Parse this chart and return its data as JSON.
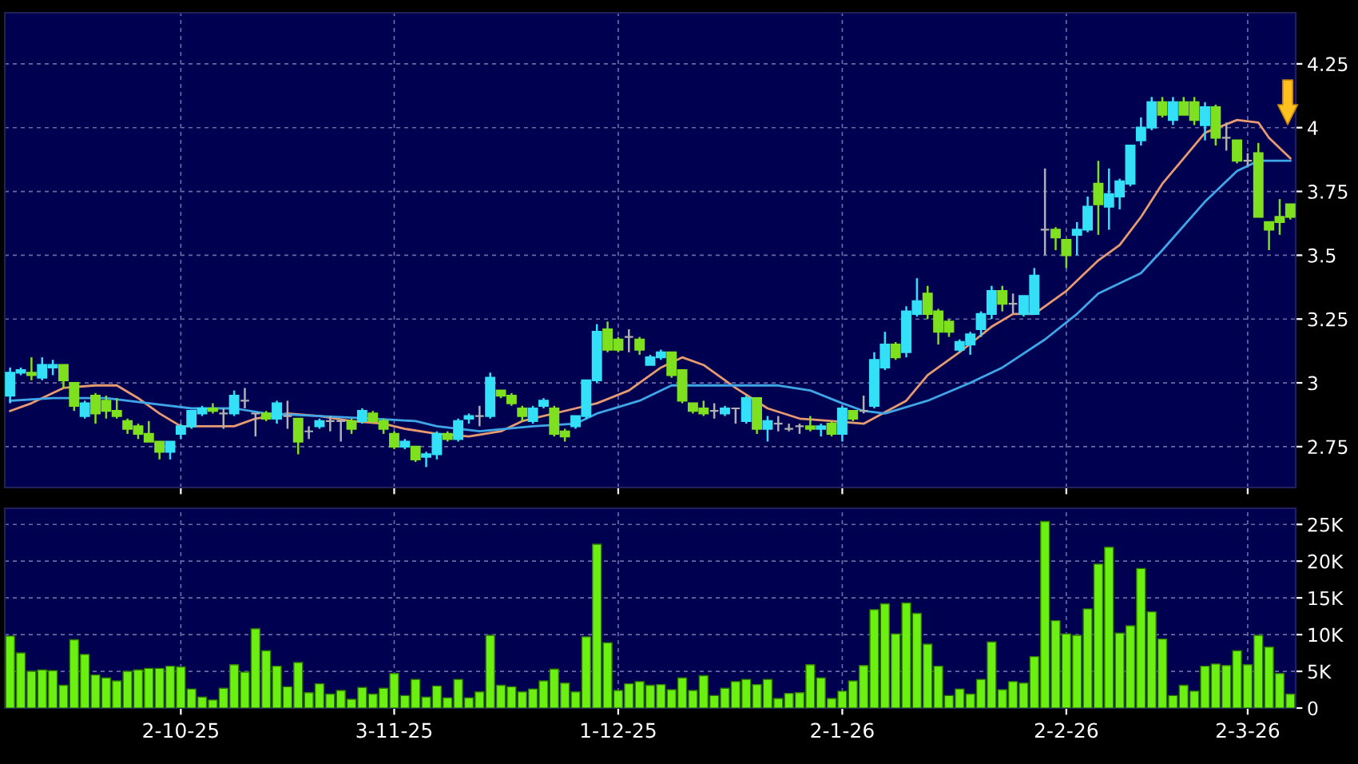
{
  "chart_data": [
    {
      "type": "candlestick",
      "categories": [
        null,
        null,
        null,
        null,
        null,
        null,
        null,
        null,
        null,
        null,
        null,
        null,
        null,
        null,
        null,
        null,
        null,
        null,
        null,
        null,
        null,
        null,
        null,
        null,
        null,
        null,
        null,
        null,
        null,
        null,
        null,
        null,
        null,
        null,
        null,
        null,
        null,
        null,
        null,
        null,
        null,
        null,
        null,
        null,
        null,
        null,
        null,
        null,
        null,
        null,
        null,
        null,
        null,
        null,
        null,
        null,
        null,
        null,
        null,
        null,
        null,
        null,
        null,
        null,
        null,
        null,
        null,
        null,
        null,
        null,
        null,
        null,
        null,
        null,
        null,
        null,
        null,
        null,
        null,
        null,
        null,
        null,
        null,
        null,
        null,
        null,
        null,
        null,
        null,
        null,
        null,
        null,
        null,
        null,
        null,
        null,
        null,
        null,
        null,
        null,
        null,
        null,
        null,
        null,
        null,
        null,
        null,
        null,
        null,
        null,
        null,
        null,
        null,
        null,
        null,
        null,
        null,
        null,
        null,
        null,
        null
      ],
      "ohlc": [
        [
          2.95,
          3.06,
          2.92,
          3.04
        ],
        [
          3.04,
          3.06,
          3.03,
          3.05
        ],
        [
          3.04,
          3.1,
          3.01,
          3.03
        ],
        [
          3.02,
          3.1,
          3.01,
          3.07
        ],
        [
          3.06,
          3.09,
          3.03,
          3.07
        ],
        [
          3.07,
          3.07,
          2.98,
          3.01
        ],
        [
          3.0,
          3.0,
          2.89,
          2.91
        ],
        [
          2.87,
          2.93,
          2.86,
          2.92
        ],
        [
          2.95,
          2.96,
          2.84,
          2.88
        ],
        [
          2.93,
          2.95,
          2.86,
          2.89
        ],
        [
          2.89,
          2.94,
          2.86,
          2.87
        ],
        [
          2.85,
          2.86,
          2.8,
          2.82
        ],
        [
          2.83,
          2.84,
          2.78,
          2.8
        ],
        [
          2.8,
          2.85,
          2.77,
          2.77
        ],
        [
          2.77,
          2.77,
          2.7,
          2.73
        ],
        [
          2.73,
          2.77,
          2.7,
          2.77
        ],
        [
          2.8,
          2.84,
          2.78,
          2.83
        ],
        [
          2.83,
          2.89,
          2.82,
          2.89
        ],
        [
          2.88,
          2.91,
          2.87,
          2.9
        ],
        [
          2.9,
          2.92,
          2.88,
          2.89
        ],
        [
          2.88,
          2.9,
          2.82,
          2.88
        ],
        [
          2.88,
          2.97,
          2.87,
          2.95
        ],
        [
          2.93,
          2.98,
          2.9,
          2.93
        ],
        [
          2.88,
          2.88,
          2.79,
          2.88
        ],
        [
          2.88,
          2.89,
          2.85,
          2.86
        ],
        [
          2.86,
          2.93,
          2.84,
          2.92
        ],
        [
          2.87,
          2.93,
          2.82,
          2.87
        ],
        [
          2.86,
          2.86,
          2.72,
          2.77
        ],
        [
          2.81,
          2.83,
          2.78,
          2.81
        ],
        [
          2.83,
          2.86,
          2.82,
          2.85
        ],
        [
          2.85,
          2.87,
          2.81,
          2.85
        ],
        [
          2.85,
          2.86,
          2.77,
          2.85
        ],
        [
          2.85,
          2.86,
          2.8,
          2.82
        ],
        [
          2.85,
          2.9,
          2.84,
          2.89
        ],
        [
          2.88,
          2.89,
          2.84,
          2.85
        ],
        [
          2.85,
          2.86,
          2.8,
          2.82
        ],
        [
          2.8,
          2.81,
          2.74,
          2.75
        ],
        [
          2.75,
          2.78,
          2.74,
          2.77
        ],
        [
          2.75,
          2.75,
          2.69,
          2.7
        ],
        [
          2.71,
          2.73,
          2.67,
          2.72
        ],
        [
          2.72,
          2.81,
          2.7,
          2.8
        ],
        [
          2.8,
          2.81,
          2.77,
          2.78
        ],
        [
          2.78,
          2.86,
          2.77,
          2.85
        ],
        [
          2.86,
          2.88,
          2.84,
          2.87
        ],
        [
          2.87,
          2.91,
          2.83,
          2.87
        ],
        [
          2.87,
          3.04,
          2.86,
          3.02
        ],
        [
          2.97,
          2.97,
          2.94,
          2.95
        ],
        [
          2.95,
          2.96,
          2.91,
          2.92
        ],
        [
          2.9,
          2.91,
          2.85,
          2.87
        ],
        [
          2.85,
          2.91,
          2.84,
          2.9
        ],
        [
          2.91,
          2.94,
          2.9,
          2.93
        ],
        [
          2.9,
          2.91,
          2.79,
          2.8
        ],
        [
          2.81,
          2.82,
          2.77,
          2.79
        ],
        [
          2.83,
          2.87,
          2.82,
          2.87
        ],
        [
          2.87,
          3.01,
          2.86,
          3.01
        ],
        [
          3.01,
          3.23,
          3.0,
          3.2
        ],
        [
          3.21,
          3.24,
          3.12,
          3.13
        ],
        [
          3.17,
          3.18,
          3.12,
          3.13
        ],
        [
          3.18,
          3.21,
          3.12,
          3.18
        ],
        [
          3.17,
          3.18,
          3.11,
          3.13
        ],
        [
          3.07,
          3.11,
          3.07,
          3.1
        ],
        [
          3.1,
          3.13,
          3.09,
          3.12
        ],
        [
          3.12,
          3.12,
          3.02,
          3.03
        ],
        [
          3.05,
          3.05,
          2.92,
          2.93
        ],
        [
          2.92,
          2.92,
          2.88,
          2.89
        ],
        [
          2.9,
          2.93,
          2.87,
          2.88
        ],
        [
          2.89,
          2.92,
          2.86,
          2.89
        ],
        [
          2.88,
          2.91,
          2.87,
          2.9
        ],
        [
          2.9,
          2.9,
          2.84,
          2.9
        ],
        [
          2.85,
          2.95,
          2.84,
          2.94
        ],
        [
          2.94,
          2.94,
          2.8,
          2.82
        ],
        [
          2.82,
          2.87,
          2.77,
          2.85
        ],
        [
          2.84,
          2.87,
          2.81,
          2.84
        ],
        [
          2.82,
          2.84,
          2.81,
          2.82
        ],
        [
          2.83,
          2.84,
          2.8,
          2.83
        ],
        [
          2.83,
          2.87,
          2.81,
          2.82
        ],
        [
          2.82,
          2.84,
          2.79,
          2.83
        ],
        [
          2.84,
          2.85,
          2.79,
          2.8
        ],
        [
          2.8,
          2.91,
          2.77,
          2.9
        ],
        [
          2.89,
          2.89,
          2.85,
          2.86
        ],
        [
          2.89,
          2.95,
          2.88,
          2.89
        ],
        [
          2.91,
          3.12,
          2.9,
          3.09
        ],
        [
          3.06,
          3.2,
          3.05,
          3.15
        ],
        [
          3.15,
          3.16,
          3.09,
          3.1
        ],
        [
          3.12,
          3.3,
          3.1,
          3.28
        ],
        [
          3.27,
          3.41,
          3.26,
          3.32
        ],
        [
          3.35,
          3.38,
          3.25,
          3.27
        ],
        [
          3.28,
          3.29,
          3.15,
          3.2
        ],
        [
          3.24,
          3.25,
          3.18,
          3.2
        ],
        [
          3.13,
          3.17,
          3.12,
          3.16
        ],
        [
          3.15,
          3.2,
          3.11,
          3.19
        ],
        [
          3.21,
          3.28,
          3.18,
          3.27
        ],
        [
          3.27,
          3.38,
          3.25,
          3.36
        ],
        [
          3.36,
          3.38,
          3.28,
          3.31
        ],
        [
          3.31,
          3.35,
          3.27,
          3.31
        ],
        [
          3.27,
          3.34,
          3.26,
          3.34
        ],
        [
          3.27,
          3.45,
          3.27,
          3.42
        ],
        [
          3.6,
          3.84,
          3.5,
          3.6
        ],
        [
          3.6,
          3.61,
          3.52,
          3.57
        ],
        [
          3.56,
          3.56,
          3.45,
          3.5
        ],
        [
          3.58,
          3.63,
          3.5,
          3.6
        ],
        [
          3.6,
          3.73,
          3.59,
          3.69
        ],
        [
          3.78,
          3.87,
          3.58,
          3.7
        ],
        [
          3.69,
          3.84,
          3.6,
          3.74
        ],
        [
          3.73,
          3.8,
          3.68,
          3.79
        ],
        [
          3.78,
          3.93,
          3.77,
          3.93
        ],
        [
          3.95,
          4.04,
          3.93,
          4.0
        ],
        [
          4.0,
          4.12,
          3.99,
          4.1
        ],
        [
          4.1,
          4.12,
          4.04,
          4.05
        ],
        [
          4.03,
          4.12,
          4.01,
          4.1
        ],
        [
          4.1,
          4.12,
          4.05,
          4.05
        ],
        [
          4.1,
          4.12,
          4.01,
          4.03
        ],
        [
          4.01,
          4.1,
          3.95,
          4.08
        ],
        [
          4.08,
          4.09,
          3.93,
          3.96
        ],
        [
          3.96,
          4.02,
          3.91,
          3.96
        ],
        [
          3.95,
          3.95,
          3.86,
          3.87
        ],
        [
          3.87,
          3.9,
          3.85,
          3.87
        ],
        [
          3.9,
          3.94,
          3.65,
          3.65
        ],
        [
          3.63,
          3.63,
          3.52,
          3.6
        ],
        [
          3.65,
          3.72,
          3.58,
          3.63
        ],
        [
          3.7,
          3.7,
          3.64,
          3.65
        ]
      ],
      "colors": [
        "#33e0f8",
        "#33e0f8",
        "#7ee01e",
        "#33e0f8",
        "#33e0f8",
        "#7ee01e",
        "#7ee01e",
        "#33e0f8",
        "#7ee01e",
        "#7ee01e",
        "#7ee01e",
        "#7ee01e",
        "#7ee01e",
        "#7ee01e",
        "#7ee01e",
        "#33e0f8",
        "#33e0f8",
        "#33e0f8",
        "#33e0f8",
        "#7ee01e",
        "#b0b0b0",
        "#33e0f8",
        "#b0b0b0",
        "#b0b0b0",
        "#7ee01e",
        "#33e0f8",
        "#b0b0b0",
        "#7ee01e",
        "#b0b0b0",
        "#33e0f8",
        "#b0b0b0",
        "#b0b0b0",
        "#7ee01e",
        "#33e0f8",
        "#7ee01e",
        "#7ee01e",
        "#7ee01e",
        "#33e0f8",
        "#7ee01e",
        "#33e0f8",
        "#33e0f8",
        "#7ee01e",
        "#33e0f8",
        "#33e0f8",
        "#b0b0b0",
        "#33e0f8",
        "#7ee01e",
        "#7ee01e",
        "#7ee01e",
        "#33e0f8",
        "#33e0f8",
        "#7ee01e",
        "#7ee01e",
        "#33e0f8",
        "#33e0f8",
        "#33e0f8",
        "#7ee01e",
        "#7ee01e",
        "#b0b0b0",
        "#7ee01e",
        "#33e0f8",
        "#33e0f8",
        "#7ee01e",
        "#7ee01e",
        "#7ee01e",
        "#7ee01e",
        "#b0b0b0",
        "#33e0f8",
        "#b0b0b0",
        "#33e0f8",
        "#7ee01e",
        "#33e0f8",
        "#b0b0b0",
        "#b0b0b0",
        "#b0b0b0",
        "#7ee01e",
        "#33e0f8",
        "#7ee01e",
        "#33e0f8",
        "#7ee01e",
        "#b0b0b0",
        "#33e0f8",
        "#33e0f8",
        "#7ee01e",
        "#33e0f8",
        "#33e0f8",
        "#7ee01e",
        "#7ee01e",
        "#7ee01e",
        "#33e0f8",
        "#33e0f8",
        "#33e0f8",
        "#33e0f8",
        "#7ee01e",
        "#b0b0b0",
        "#33e0f8",
        "#33e0f8",
        "#b0b0b0",
        "#7ee01e",
        "#7ee01e",
        "#33e0f8",
        "#33e0f8",
        "#7ee01e",
        "#33e0f8",
        "#33e0f8",
        "#33e0f8",
        "#33e0f8",
        "#33e0f8",
        "#7ee01e",
        "#33e0f8",
        "#7ee01e",
        "#7ee01e",
        "#33e0f8",
        "#7ee01e",
        "#b0b0b0",
        "#7ee01e",
        "#b0b0b0",
        "#7ee01e",
        "#7ee01e",
        "#7ee01e",
        "#7ee01e"
      ],
      "series": [
        {
          "type": "line",
          "color": "#e89a70",
          "values": [
            2.89,
            null,
            2.92,
            null,
            null,
            2.98,
            null,
            null,
            2.99,
            null,
            2.99,
            null,
            2.94,
            null,
            2.88,
            null,
            2.83,
            null,
            null,
            2.83,
            null,
            2.83,
            null,
            2.86,
            null,
            null,
            2.88,
            null,
            null,
            2.87,
            null,
            null,
            2.85,
            null,
            null,
            2.84,
            null,
            2.82,
            null,
            null,
            2.8,
            null,
            null,
            2.79,
            null,
            null,
            2.81,
            null,
            2.85,
            null,
            null,
            null,
            null,
            2.9,
            null,
            2.92,
            null,
            null,
            2.97,
            null,
            null,
            3.06,
            null,
            3.1,
            null,
            3.07,
            null,
            null,
            2.98,
            null,
            null,
            2.9,
            null,
            null,
            2.86,
            null,
            null,
            2.85,
            null,
            null,
            2.84,
            null,
            null,
            null,
            2.93,
            null,
            3.03,
            null,
            null,
            3.12,
            null,
            null,
            3.22,
            null,
            3.27,
            null,
            3.27,
            null,
            null,
            3.36,
            null,
            null,
            3.48,
            null,
            3.54,
            null,
            3.65,
            null,
            3.78,
            null,
            3.88,
            null,
            3.98,
            null,
            null,
            4.03,
            null,
            4.02,
            3.96,
            null,
            3.88
          ]
        },
        {
          "type": "line",
          "color": "#3fa6e8",
          "values": [
            2.93,
            null,
            null,
            null,
            2.94,
            null,
            null,
            null,
            null,
            2.94,
            null,
            null,
            null,
            2.92,
            null,
            null,
            null,
            2.9,
            null,
            null,
            null,
            2.9,
            null,
            null,
            2.88,
            null,
            null,
            null,
            null,
            2.87,
            null,
            null,
            null,
            null,
            2.86,
            null,
            null,
            null,
            2.85,
            null,
            2.83,
            null,
            null,
            null,
            2.81,
            null,
            null,
            null,
            null,
            2.83,
            null,
            null,
            null,
            2.84,
            null,
            2.88,
            null,
            null,
            null,
            2.93,
            null,
            null,
            2.99,
            null,
            null,
            2.99,
            null,
            null,
            null,
            2.99,
            null,
            null,
            2.99,
            null,
            null,
            2.97,
            null,
            null,
            2.92,
            null,
            2.89,
            null,
            2.88,
            null,
            null,
            null,
            2.93,
            null,
            null,
            null,
            3.0,
            null,
            null,
            3.06,
            null,
            null,
            null,
            3.17,
            null,
            null,
            3.27,
            null,
            3.35,
            null,
            null,
            null,
            3.43,
            null,
            3.52,
            null,
            null,
            null,
            3.71,
            null,
            null,
            3.83,
            null,
            3.87,
            null,
            null,
            3.87
          ]
        }
      ],
      "ylim": [
        2.59,
        4.45
      ],
      "yticks": [
        2.75,
        3,
        3.25,
        3.5,
        3.75,
        4,
        4.25
      ],
      "grid": true,
      "tick_labels": "y",
      "line_style": "solid"
    },
    {
      "type": "bar",
      "categories": [
        null,
        null,
        null,
        null,
        null,
        null,
        null,
        null,
        null,
        null,
        null,
        null,
        null,
        null,
        null,
        null,
        "2-10-25",
        null,
        null,
        null,
        null,
        null,
        null,
        null,
        null,
        null,
        null,
        null,
        null,
        null,
        null,
        null,
        null,
        null,
        null,
        null,
        "3-11-25",
        null,
        null,
        null,
        null,
        null,
        null,
        null,
        null,
        null,
        null,
        null,
        null,
        null,
        null,
        null,
        null,
        null,
        null,
        null,
        null,
        "1-12-25",
        null,
        null,
        null,
        null,
        null,
        null,
        null,
        null,
        null,
        null,
        null,
        null,
        null,
        null,
        null,
        null,
        null,
        null,
        null,
        null,
        "2-1-26",
        null,
        null,
        null,
        null,
        null,
        null,
        null,
        null,
        null,
        null,
        null,
        null,
        null,
        null,
        null,
        null,
        null,
        null,
        null,
        null,
        "2-2-26",
        null,
        null,
        null,
        null,
        null,
        null,
        null,
        null,
        null,
        null,
        null,
        null,
        null,
        null,
        null,
        null,
        "2-3-26",
        null,
        null,
        null,
        null
      ],
      "values": [
        9800,
        7500,
        5000,
        5200,
        5100,
        3100,
        9300,
        7300,
        4500,
        4100,
        3700,
        5000,
        5200,
        5400,
        5400,
        5700,
        5600,
        2600,
        1500,
        1100,
        2700,
        5900,
        4900,
        10800,
        7800,
        5700,
        2900,
        6200,
        2100,
        3300,
        1900,
        2400,
        1200,
        2800,
        1900,
        2700,
        4700,
        1700,
        3900,
        1500,
        3000,
        1400,
        3900,
        1400,
        2200,
        9900,
        3100,
        2900,
        2200,
        2600,
        3700,
        5300,
        3400,
        2200,
        9700,
        22300,
        8900,
        2400,
        3300,
        3600,
        3100,
        3200,
        2500,
        4100,
        2400,
        4400,
        1700,
        2700,
        3600,
        3900,
        3200,
        3900,
        1300,
        2000,
        2100,
        5900,
        4100,
        1300,
        2300,
        3700,
        5800,
        13400,
        14200,
        10100,
        14300,
        12900,
        8700,
        5700,
        1700,
        2600,
        1900,
        3900,
        9000,
        2500,
        3600,
        3400,
        7000,
        25400,
        11900,
        10100,
        9900,
        13500,
        19600,
        21900,
        10200,
        11200,
        19000,
        13100,
        9400,
        1700,
        3100,
        2300,
        5700,
        6000,
        5800,
        7800,
        5900,
        9900,
        8300,
        4700,
        1900
      ],
      "color": "#6cf012",
      "ylim": [
        0,
        27200
      ],
      "yticks": [
        0,
        {
          "value": 5000,
          "label": "5K"
        },
        {
          "value": 10000,
          "label": "10K"
        },
        {
          "value": 15000,
          "label": "15K"
        },
        {
          "value": 20000,
          "label": "20K"
        },
        {
          "value": 25000,
          "label": "25K"
        }
      ],
      "grid": true
    }
  ]
}
